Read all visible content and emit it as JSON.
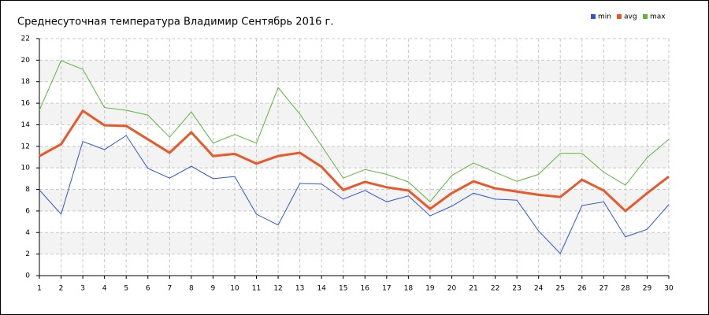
{
  "chart_data": {
    "type": "line",
    "title": "Среднесуточная температура Владимир  Сентябрь 2016 г.",
    "x": [
      1,
      2,
      3,
      4,
      5,
      6,
      7,
      8,
      9,
      10,
      11,
      12,
      13,
      14,
      15,
      16,
      17,
      18,
      19,
      20,
      21,
      22,
      23,
      24,
      25,
      26,
      27,
      28,
      29,
      30
    ],
    "xlim": [
      1,
      30
    ],
    "xticks": [
      1,
      2,
      3,
      4,
      5,
      6,
      7,
      8,
      9,
      10,
      11,
      12,
      13,
      14,
      15,
      16,
      17,
      18,
      19,
      20,
      21,
      22,
      23,
      24,
      25,
      26,
      27,
      28,
      29,
      30
    ],
    "ylim": [
      0,
      22
    ],
    "yticks": [
      0,
      2,
      4,
      6,
      8,
      10,
      12,
      14,
      16,
      18,
      20,
      22
    ],
    "grid": true,
    "legend": "top-right",
    "series": [
      {
        "name": "min",
        "color": "#2f55d4",
        "values": [
          7.95,
          5.7,
          12.45,
          11.7,
          13.0,
          9.95,
          9.05,
          10.15,
          9.0,
          9.2,
          5.7,
          4.7,
          8.55,
          8.5,
          7.1,
          7.9,
          6.85,
          7.4,
          5.55,
          6.45,
          7.65,
          7.1,
          7.0,
          4.15,
          2.05,
          6.5,
          6.85,
          3.6,
          4.3,
          6.6
        ]
      },
      {
        "name": "avg",
        "color": "#e8592a",
        "values": [
          11.1,
          12.2,
          15.3,
          13.95,
          13.9,
          12.65,
          11.4,
          13.3,
          11.1,
          11.3,
          10.4,
          11.1,
          11.4,
          10.1,
          7.95,
          8.7,
          8.2,
          7.9,
          6.2,
          7.65,
          8.75,
          8.1,
          7.8,
          7.5,
          7.3,
          8.9,
          7.9,
          6.0,
          7.65,
          9.2
        ]
      },
      {
        "name": "max",
        "color": "#5db53a",
        "values": [
          15.35,
          19.95,
          19.15,
          15.6,
          15.35,
          14.9,
          12.85,
          15.2,
          12.3,
          13.1,
          12.3,
          17.45,
          15.0,
          12.05,
          9.05,
          9.85,
          9.4,
          8.7,
          6.85,
          9.3,
          10.45,
          9.6,
          8.75,
          9.4,
          11.35,
          11.35,
          9.6,
          8.4,
          10.95,
          12.65
        ]
      }
    ]
  }
}
